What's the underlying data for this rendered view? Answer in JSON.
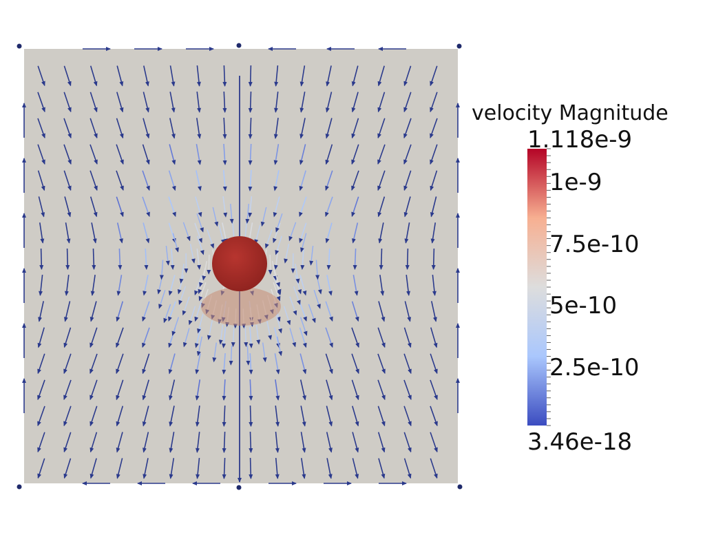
{
  "colorbar": {
    "title": "velocity Magnitude",
    "max_label": "1.118e-9",
    "min_label": "3.46e-18",
    "tick_labels": [
      "1e-9",
      "7.5e-10",
      "5e-10",
      "2.5e-10"
    ],
    "tick_values": [
      1e-09,
      7.5e-10,
      5e-10,
      2.5e-10
    ],
    "range": [
      3.46e-18,
      1.118e-09
    ],
    "colormap": [
      "#3b4cc0",
      "#aac7fd",
      "#dddddd",
      "#f7af91",
      "#b40426"
    ]
  },
  "scene": {
    "background_color": "#ffffff",
    "domain_color": "#cfccc6",
    "arrow_color": "#2b3a8c",
    "sphere_color": "#a9302b"
  }
}
